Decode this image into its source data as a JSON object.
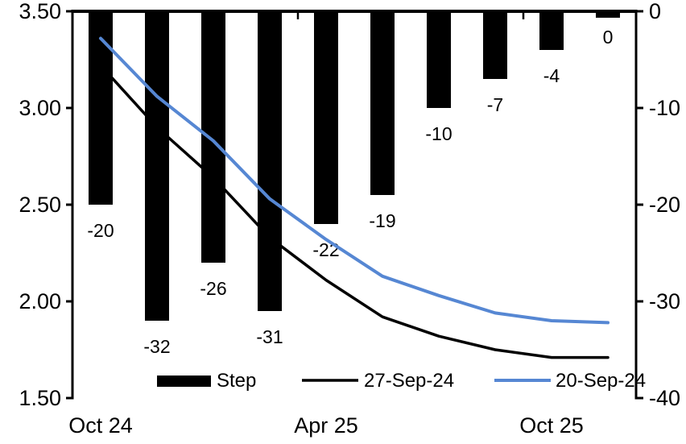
{
  "chart_data": {
    "type": "bar+line",
    "title": "",
    "background": "#ffffff",
    "grid": false,
    "n_categories": 10,
    "x_tick_labels": [
      {
        "index": 0,
        "label": "Oct 24"
      },
      {
        "index": 4,
        "label": "Apr 25"
      },
      {
        "index": 8,
        "label": "Oct 25"
      }
    ],
    "bars": {
      "name": "Step",
      "axis": "right",
      "color": "#000000",
      "values": [
        -20,
        -32,
        -26,
        -31,
        -22,
        -19,
        -10,
        -7,
        -4,
        0
      ],
      "labels": [
        "-20",
        "-32",
        "-26",
        "-31",
        "-22",
        "-19",
        "-10",
        "-7",
        "-4",
        "0"
      ]
    },
    "series": [
      {
        "name": "27-Sep-24",
        "axis": "left",
        "color": "#000000",
        "values": [
          3.22,
          2.9,
          2.64,
          2.33,
          2.11,
          1.92,
          1.82,
          1.75,
          1.71,
          1.71
        ]
      },
      {
        "name": "20-Sep-24",
        "axis": "left",
        "color": "#5687D3",
        "values": [
          3.36,
          3.06,
          2.83,
          2.53,
          2.32,
          2.13,
          2.03,
          1.94,
          1.9,
          1.89
        ]
      }
    ],
    "left_axis": {
      "min": 1.5,
      "max": 3.5,
      "tick_labels": [
        "3.50",
        "3.00",
        "2.50",
        "2.00",
        "1.50"
      ]
    },
    "right_axis": {
      "min": -40,
      "max": 0,
      "tick_labels": [
        "0",
        "-10",
        "-20",
        "-30",
        "-40"
      ]
    },
    "legend": {
      "position": "bottom",
      "entries": [
        {
          "label": "Step",
          "type": "bar",
          "color": "#000000"
        },
        {
          "label": "27-Sep-24",
          "type": "line",
          "color": "#000000"
        },
        {
          "label": "20-Sep-24",
          "type": "line",
          "color": "#5687D3"
        }
      ]
    }
  }
}
